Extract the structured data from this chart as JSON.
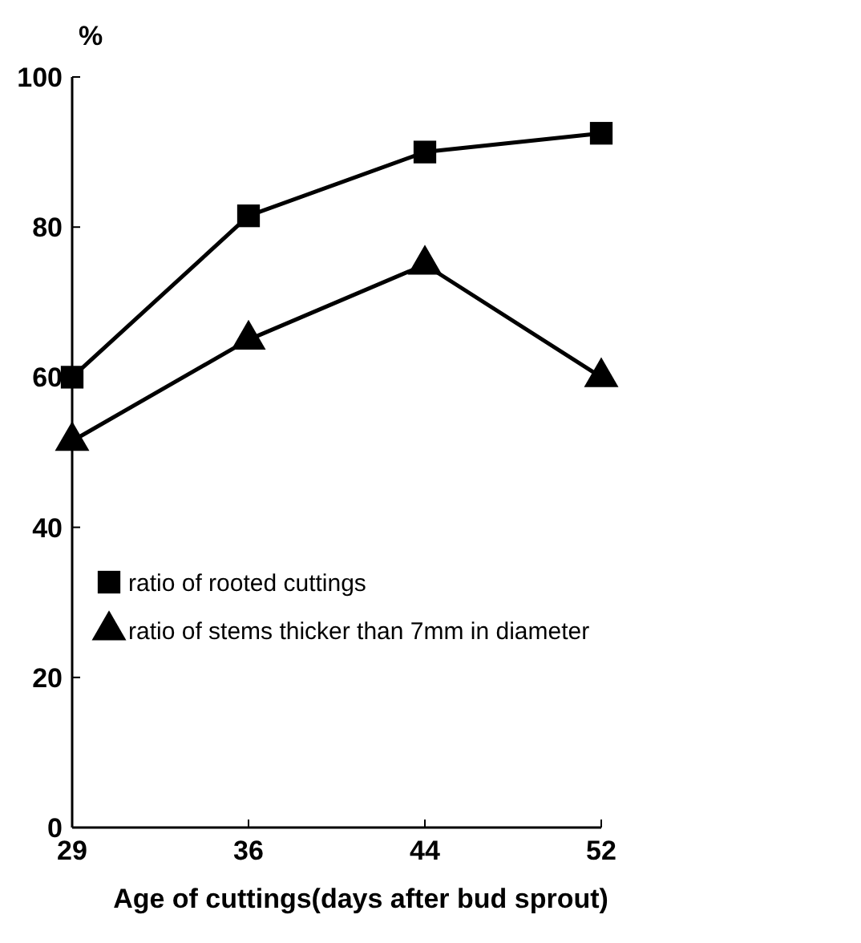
{
  "chart_data": {
    "type": "line",
    "ylabel": "%",
    "xlabel": "Age of cuttings(days after bud sprout)",
    "categories": [
      "29",
      "36",
      "44",
      "52"
    ],
    "ylim": [
      0,
      100
    ],
    "yticks": [
      0,
      20,
      40,
      60,
      80,
      100
    ],
    "legend": "left",
    "series": [
      {
        "name": "ratio of rooted cuttings",
        "color": "#000000",
        "marker": "square",
        "values": [
          60,
          81.5,
          90,
          92.5
        ]
      },
      {
        "name": "ratio of stems thicker than 7mm in diameter",
        "color": "#000000",
        "marker": "triangle",
        "values": [
          51.5,
          65,
          75,
          60
        ]
      }
    ]
  }
}
